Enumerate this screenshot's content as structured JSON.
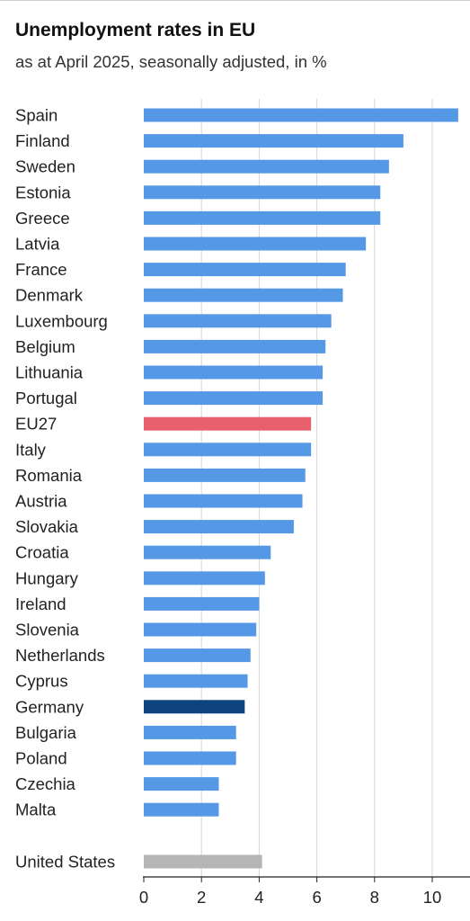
{
  "header": {
    "title": "Unemployment rates in EU",
    "subtitle": "as at April 2025, seasonally adjusted, in %"
  },
  "colors": {
    "default": "#5599e6",
    "eu27": "#e8606e",
    "germany": "#0d447f",
    "other": "#b5b5b5",
    "grid": "#d6d6d6",
    "axis": "#222222",
    "label": "#222222"
  },
  "chart_data": {
    "type": "bar",
    "orientation": "horizontal",
    "title": "Unemployment rates in EU",
    "subtitle": "as at April 2025, seasonally adjusted, in %",
    "xlim": [
      0,
      11
    ],
    "xticks": [
      0,
      2,
      4,
      6,
      8,
      10
    ],
    "grid": true,
    "categories": [
      "Spain",
      "Finland",
      "Sweden",
      "Estonia",
      "Greece",
      "Latvia",
      "France",
      "Denmark",
      "Luxembourg",
      "Belgium",
      "Lithuania",
      "Portugal",
      "EU27",
      "Italy",
      "Romania",
      "Austria",
      "Slovakia",
      "Croatia",
      "Hungary",
      "Ireland",
      "Slovenia",
      "Netherlands",
      "Cyprus",
      "Germany",
      "Bulgaria",
      "Poland",
      "Czechia",
      "Malta",
      "United States"
    ],
    "values": [
      10.9,
      9.0,
      8.5,
      8.2,
      8.2,
      7.7,
      7.0,
      6.9,
      6.5,
      6.3,
      6.2,
      6.2,
      5.8,
      5.8,
      5.6,
      5.5,
      5.2,
      4.4,
      4.2,
      4.0,
      3.9,
      3.7,
      3.6,
      3.5,
      3.2,
      3.2,
      2.6,
      2.6,
      4.1
    ],
    "highlight": {
      "EU27": "eu27",
      "Germany": "germany",
      "United States": "other"
    }
  }
}
